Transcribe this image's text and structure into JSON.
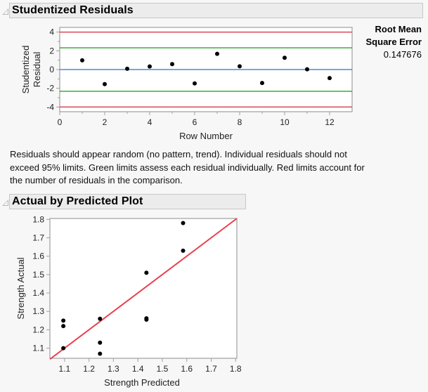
{
  "sections": {
    "residuals": {
      "title": "Studentized Residuals",
      "stat_label_line1": "Root Mean",
      "stat_label_line2": "Square Error",
      "stat_value": "0.147676",
      "note": "Residuals should appear random (no pattern, trend). Individual residuals should not exceed 95% limits. Green limits assess each residual individually. Red limits account for the number of residuals in the comparison."
    },
    "actual_predicted": {
      "title": "Actual by Predicted Plot"
    }
  },
  "colors": {
    "red_limit": "#d93a4a",
    "green_limit": "#2aa52a",
    "zero_line": "#2a6fd6",
    "fit_line": "#e8404f",
    "point": "#000000",
    "frame": "#a0a0a0"
  },
  "chart_data": [
    {
      "type": "scatter",
      "title": "Studentized Residuals",
      "xlabel": "Row Number",
      "ylabel": "Studentized Residual",
      "xlim": [
        0,
        13
      ],
      "ylim": [
        -4.5,
        4.5
      ],
      "xticks": [
        0,
        2,
        4,
        6,
        8,
        10,
        12
      ],
      "yticks": [
        -4,
        -2,
        0,
        2,
        4
      ],
      "reference_lines": [
        {
          "name": "red upper limit",
          "y": 4.0,
          "color": "#d93a4a"
        },
        {
          "name": "green upper limit",
          "y": 2.32,
          "color": "#2aa52a"
        },
        {
          "name": "zero",
          "y": 0,
          "color": "#2a6fd6"
        },
        {
          "name": "green lower limit",
          "y": -2.32,
          "color": "#2aa52a"
        },
        {
          "name": "red lower limit",
          "y": -4.0,
          "color": "#d93a4a"
        }
      ],
      "x": [
        1,
        2,
        3,
        4,
        5,
        6,
        7,
        8,
        9,
        10,
        11,
        12
      ],
      "y": [
        0.98,
        -1.56,
        0.08,
        0.33,
        0.58,
        -1.48,
        1.68,
        0.35,
        -1.43,
        1.26,
        0.03,
        -0.91
      ],
      "grid": false
    },
    {
      "type": "scatter",
      "title": "Actual by Predicted Plot",
      "xlabel": "Strength Predicted",
      "ylabel": "Strength Actual",
      "xlim": [
        1.04,
        1.805
      ],
      "ylim": [
        1.045,
        1.805
      ],
      "xticks": [
        1.1,
        1.2,
        1.3,
        1.4,
        1.5,
        1.6,
        1.7,
        1.8
      ],
      "yticks": [
        1.1,
        1.2,
        1.3,
        1.4,
        1.5,
        1.6,
        1.7,
        1.8
      ],
      "fit_line": {
        "from": [
          1.04,
          1.04
        ],
        "to": [
          1.805,
          1.805
        ],
        "color": "#e8404f"
      },
      "x": [
        1.095,
        1.095,
        1.095,
        1.245,
        1.245,
        1.245,
        1.435,
        1.435,
        1.435,
        1.585,
        1.585
      ],
      "y": [
        1.25,
        1.22,
        1.1,
        1.26,
        1.13,
        1.07,
        1.51,
        1.255,
        1.262,
        1.78,
        1.63
      ],
      "grid": false
    }
  ]
}
